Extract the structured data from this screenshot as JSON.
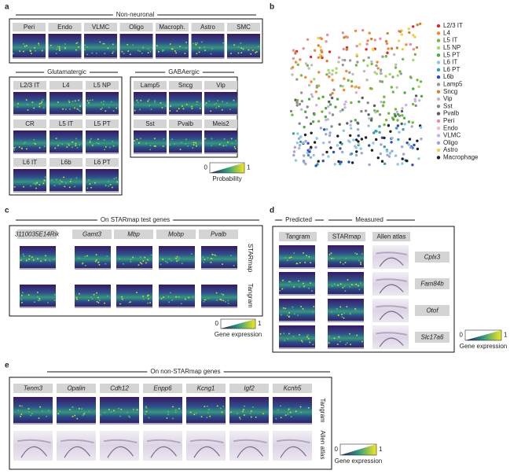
{
  "panel_a": {
    "label": "a",
    "non_neuronal": {
      "title": "Non-neuronal",
      "cell_types": [
        "Peri",
        "Endo",
        "VLMC",
        "Oligo",
        "Macroph.",
        "Astro",
        "SMC"
      ]
    },
    "glutamatergic": {
      "title": "Glutamatergic",
      "cell_types": [
        "L2/3 IT",
        "L4",
        "L5 NP",
        "CR",
        "L5 IT",
        "L5 PT",
        "L6 IT",
        "L6b",
        "L6 PT"
      ]
    },
    "gabaergic": {
      "title": "GABAergic",
      "cell_types": [
        "Lamp5",
        "Sncg",
        "Vip",
        "Sst",
        "Pvalb",
        "Meis2"
      ]
    },
    "colorbar": {
      "min": 0,
      "max": 1,
      "label": "Probability"
    }
  },
  "panel_b": {
    "label": "b",
    "legend": [
      {
        "name": "L2/3 IT",
        "color": "#e3262a"
      },
      {
        "name": "L4",
        "color": "#f08a30"
      },
      {
        "name": "L5 IT",
        "color": "#74b83e"
      },
      {
        "name": "L5 NP",
        "color": "#a8d86c"
      },
      {
        "name": "L5 PT",
        "color": "#4fa84a"
      },
      {
        "name": "L6 IT",
        "color": "#8cc6e4"
      },
      {
        "name": "L6 PT",
        "color": "#3a9cb2"
      },
      {
        "name": "L6b",
        "color": "#2f4fbf"
      },
      {
        "name": "Lamp5",
        "color": "#9a9a9a"
      },
      {
        "name": "Sncg",
        "color": "#c8863c"
      },
      {
        "name": "Vip",
        "color": "#bdbdbd"
      },
      {
        "name": "Sst",
        "color": "#8a8a8a"
      },
      {
        "name": "Pvalb",
        "color": "#5e5e5e"
      },
      {
        "name": "Peri",
        "color": "#e48ea0"
      },
      {
        "name": "Endo",
        "color": "#f4b8c8"
      },
      {
        "name": "VLMC",
        "color": "#c4b4e4"
      },
      {
        "name": "Oligo",
        "color": "#a2a2d6"
      },
      {
        "name": "Astro",
        "color": "#f0d04a"
      },
      {
        "name": "Macrophage",
        "color": "#222222"
      }
    ]
  },
  "panel_c": {
    "label": "c",
    "title": "On STARmap test genes",
    "genes": [
      "3110035E14Rik",
      "Gamt3",
      "Mbp",
      "Mobp",
      "Pvalb"
    ],
    "rows": [
      "STARmap",
      "Tangram"
    ],
    "colorbar": {
      "min": 0,
      "max": 1,
      "label": "Gene expression"
    }
  },
  "panel_d": {
    "label": "d",
    "predicted": "Predicted",
    "measured": "Measured",
    "columns": [
      "Tangram",
      "STARmap",
      "Allen atlas"
    ],
    "genes": [
      "Cplx3",
      "Fam84b",
      "Otof",
      "Slc17a6"
    ],
    "colorbar": {
      "min": 0,
      "max": 1,
      "label": "Gene expression"
    }
  },
  "panel_e": {
    "label": "e",
    "title": "On non-STARmap genes",
    "genes": [
      "Tenm3",
      "Opalin",
      "Cdh12",
      "Enpp6",
      "Kcng1",
      "Igf2",
      "Kcnh5"
    ],
    "rows": [
      "Tangram",
      "Allen atlas"
    ],
    "colorbar": {
      "min": 0,
      "max": 1,
      "label": "Gene expression"
    }
  }
}
